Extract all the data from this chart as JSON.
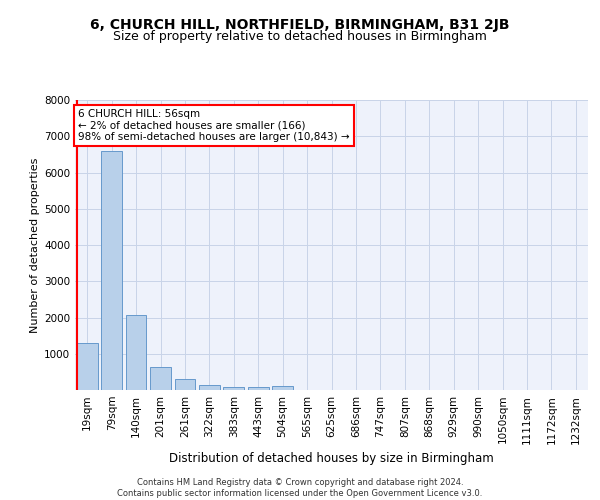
{
  "title1": "6, CHURCH HILL, NORTHFIELD, BIRMINGHAM, B31 2JB",
  "title2": "Size of property relative to detached houses in Birmingham",
  "xlabel": "Distribution of detached houses by size in Birmingham",
  "ylabel": "Number of detached properties",
  "categories": [
    "19sqm",
    "79sqm",
    "140sqm",
    "201sqm",
    "261sqm",
    "322sqm",
    "383sqm",
    "443sqm",
    "504sqm",
    "565sqm",
    "625sqm",
    "686sqm",
    "747sqm",
    "807sqm",
    "868sqm",
    "929sqm",
    "990sqm",
    "1050sqm",
    "1111sqm",
    "1172sqm",
    "1232sqm"
  ],
  "values": [
    1300,
    6580,
    2080,
    630,
    290,
    145,
    95,
    70,
    110,
    0,
    0,
    0,
    0,
    0,
    0,
    0,
    0,
    0,
    0,
    0,
    0
  ],
  "bar_color": "#b8d0ea",
  "bar_edge_color": "#6699cc",
  "annotation_text": "6 CHURCH HILL: 56sqm\n← 2% of detached houses are smaller (166)\n98% of semi-detached houses are larger (10,843) →",
  "annotation_box_facecolor": "white",
  "annotation_box_edgecolor": "red",
  "vline_color": "red",
  "ylim": [
    0,
    8000
  ],
  "yticks": [
    0,
    1000,
    2000,
    3000,
    4000,
    5000,
    6000,
    7000,
    8000
  ],
  "grid_color": "#c8d4e8",
  "background_color": "#eef2fb",
  "footer": "Contains HM Land Registry data © Crown copyright and database right 2024.\nContains public sector information licensed under the Open Government Licence v3.0.",
  "title1_fontsize": 10,
  "title2_fontsize": 9,
  "xlabel_fontsize": 8.5,
  "ylabel_fontsize": 8,
  "tick_fontsize": 7.5,
  "annotation_fontsize": 7.5,
  "footer_fontsize": 6
}
